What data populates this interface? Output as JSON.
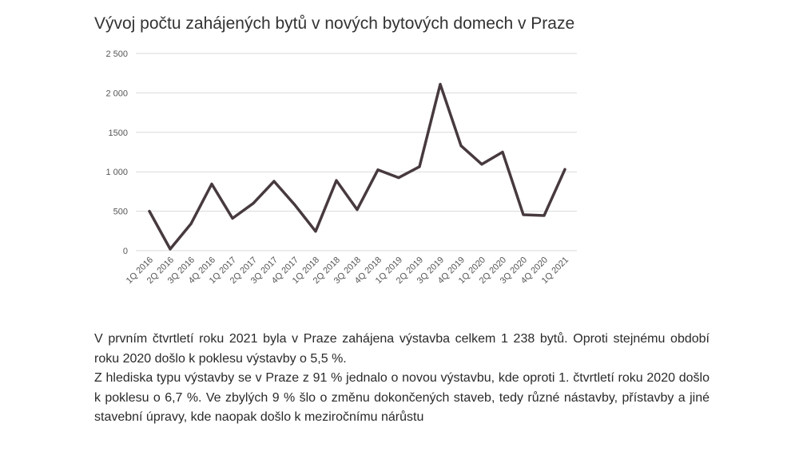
{
  "chart_data": {
    "type": "line",
    "title": "Vývoj počtu zahájených bytů v nových bytových domech v Praze",
    "categories": [
      "1Q 2016",
      "2Q 2016",
      "3Q 2016",
      "4Q 2016",
      "1Q 2017",
      "2Q 2017",
      "3Q 2017",
      "4Q 2017",
      "1Q 2018",
      "2Q 2018",
      "3Q 2018",
      "4Q 2018",
      "1Q 2019",
      "2Q 2019",
      "3Q 2019",
      "4Q 2019",
      "1Q 2020",
      "2Q 2020",
      "3Q 2020",
      "4Q 2020",
      "1Q 2021"
    ],
    "series": [
      {
        "values": [
          500,
          20,
          340,
          845,
          410,
          600,
          880,
          580,
          245,
          890,
          520,
          1025,
          925,
          1065,
          2110,
          1330,
          1095,
          1250,
          455,
          445,
          1030
        ]
      }
    ],
    "y_ticks": [
      {
        "value": 0,
        "label": "0"
      },
      {
        "value": 500,
        "label": "500"
      },
      {
        "value": 1000,
        "label": "1 000"
      },
      {
        "value": 1500,
        "label": "1500"
      },
      {
        "value": 2000,
        "label": "2 000"
      },
      {
        "value": 2500,
        "label": "2 500"
      }
    ],
    "ylim": [
      0,
      2500
    ],
    "grid": true,
    "line_color": "#473a3f"
  },
  "text": {
    "paragraph1": "V prvním čtvrtletí roku 2021 byla v Praze zahájena výstavba celkem 1 238 bytů. Oproti stejnému období roku 2020 došlo k poklesu výstavby o 5,5 %.",
    "paragraph2": "Z hlediska typu výstavby se v Praze z 91 % jednalo o novou výstavbu, kde oproti 1. čtvrtletí roku 2020 došlo k poklesu o 6,7 %. Ve zbylých 9 % šlo o změnu dokončených staveb, tedy různé nástavby, přístavby a jiné stavební úpravy, kde naopak došlo k meziročnímu nárůstu"
  }
}
